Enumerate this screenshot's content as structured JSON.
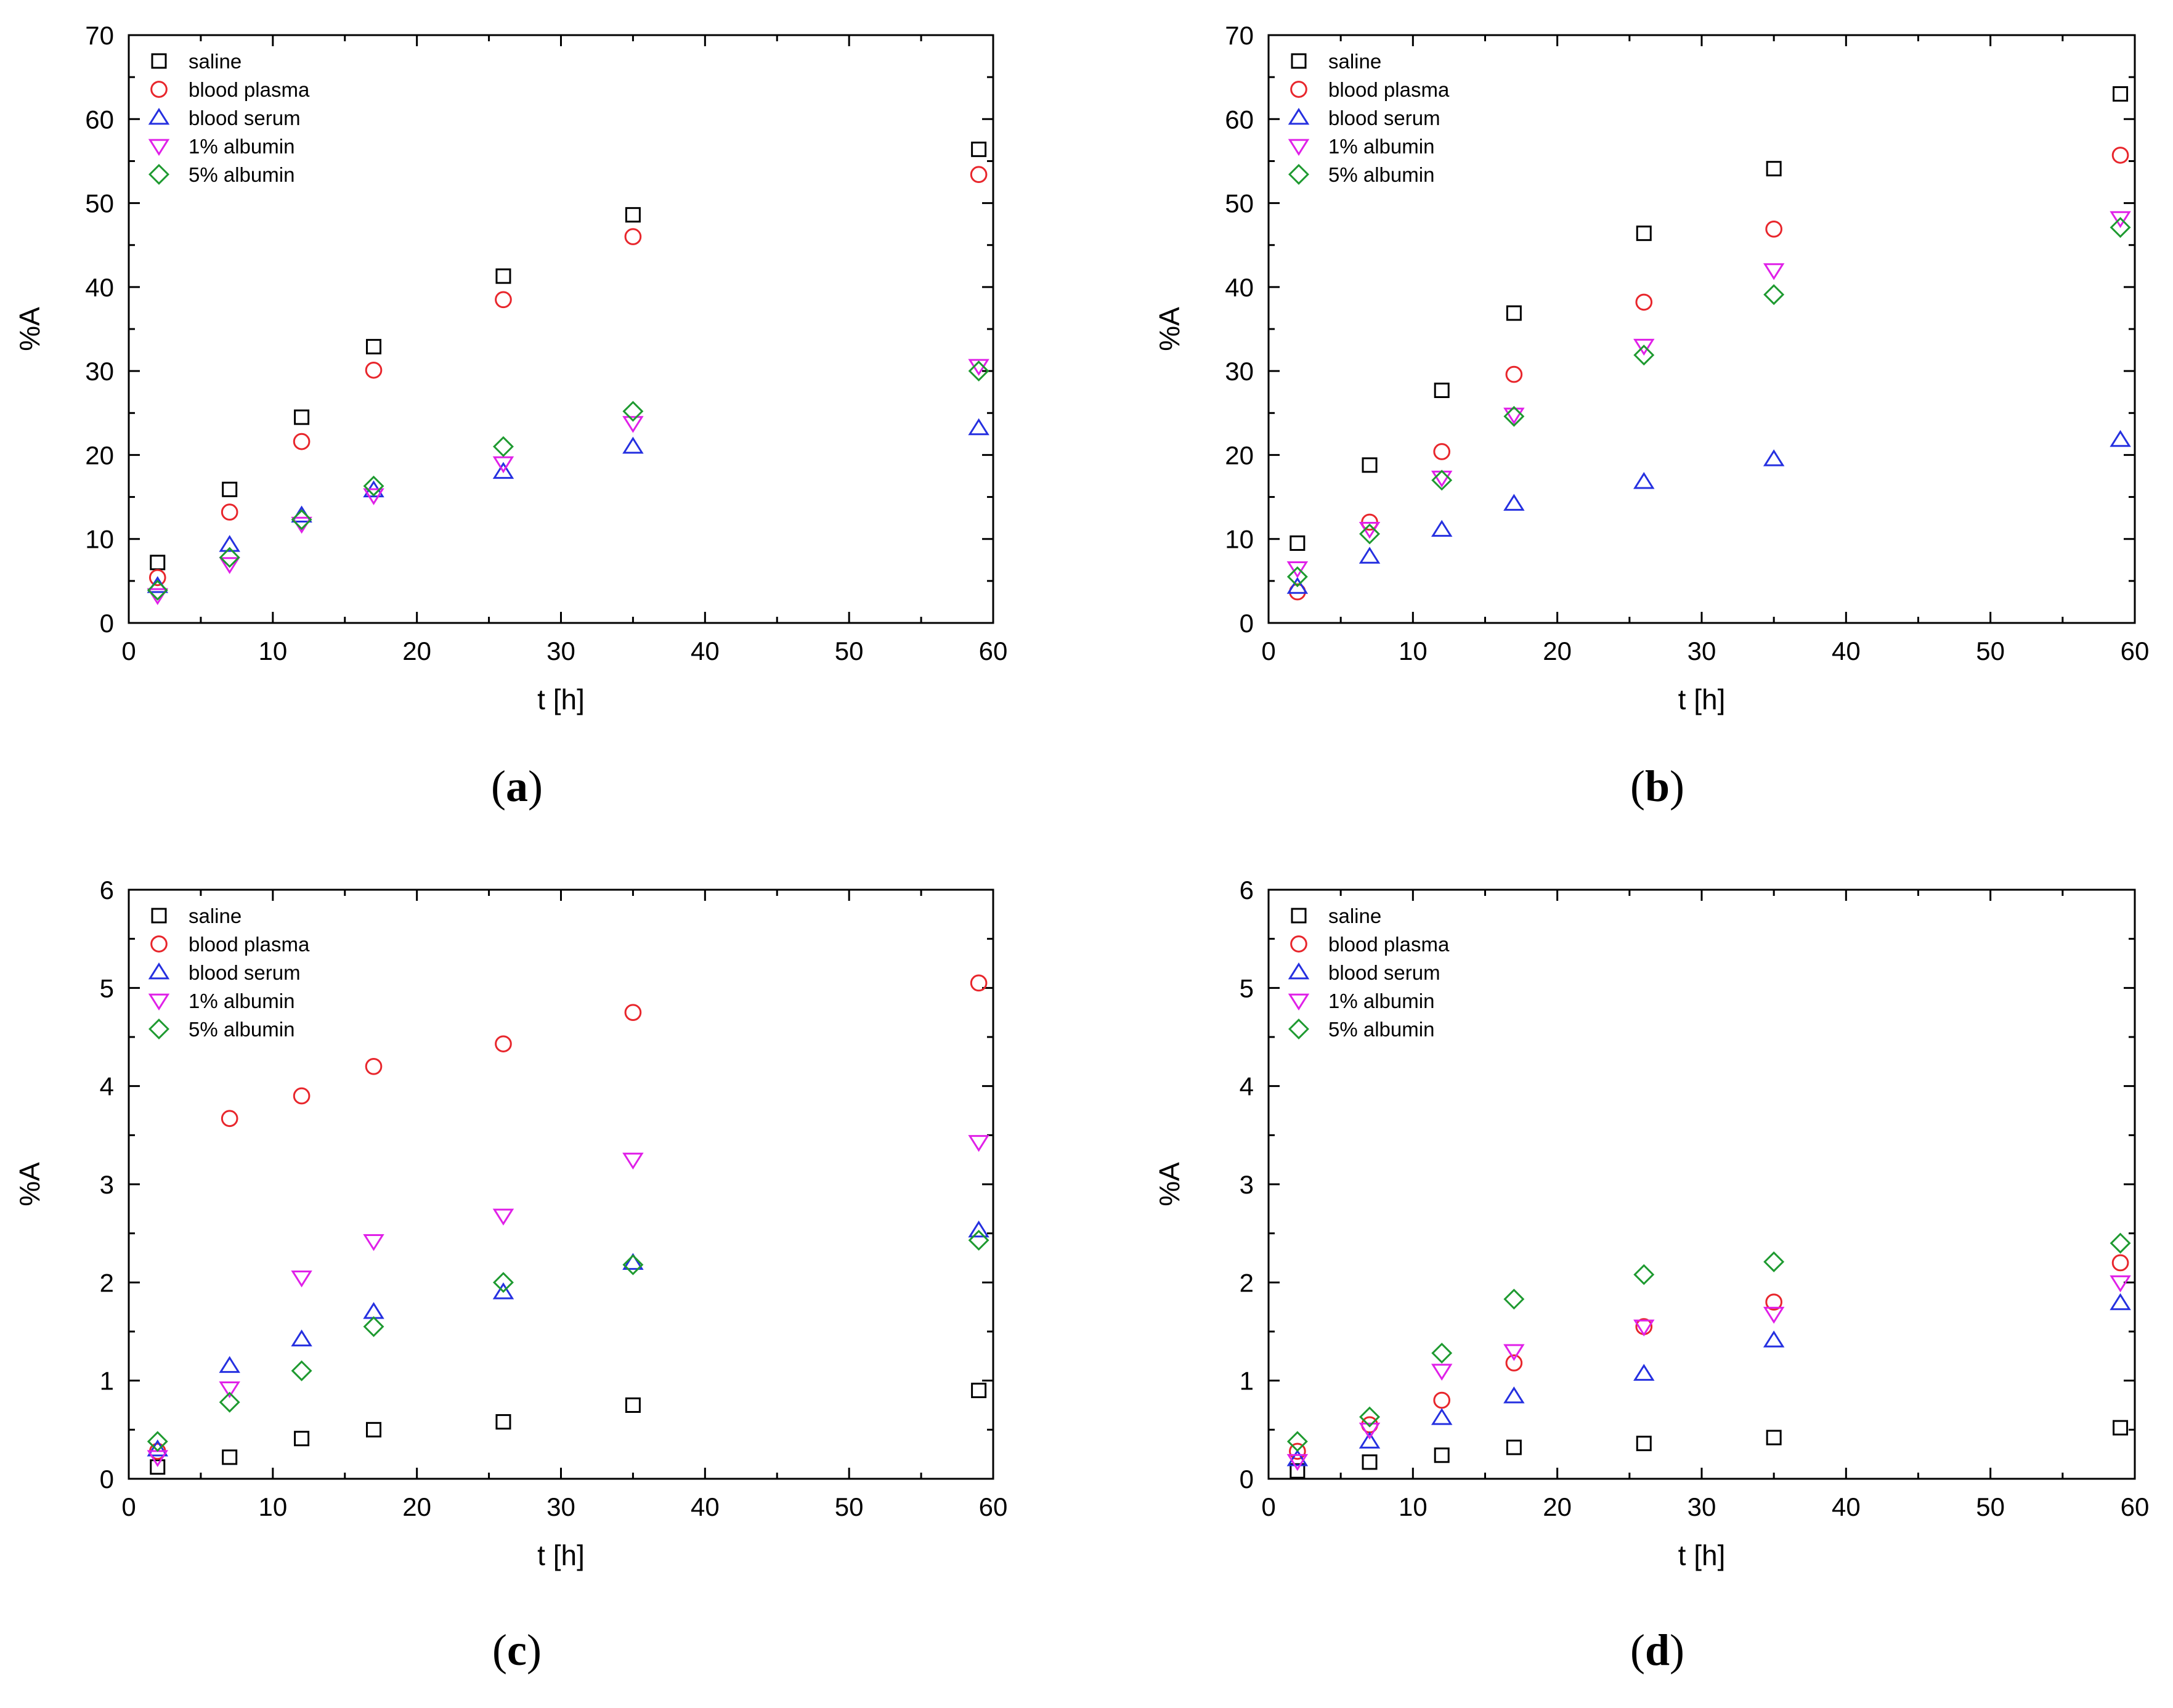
{
  "colors": {
    "saline": "#000000",
    "blood_plasma": "#e8262c",
    "blood_serum": "#2530e0",
    "albumin_1": "#e020e8",
    "albumin_5": "#1e9a30"
  },
  "chart_data": [
    {
      "type": "scatter",
      "panel_label": "a",
      "xlabel": "t [h]",
      "ylabel": "%A",
      "xlim": [
        0,
        60
      ],
      "ylim": [
        0,
        70
      ],
      "xticks": [
        "0",
        "10",
        "20",
        "30",
        "40",
        "50",
        "60"
      ],
      "yticks": [
        "0",
        "10",
        "20",
        "30",
        "40",
        "50",
        "60",
        "70"
      ],
      "legend_position": "top-left",
      "x": [
        2,
        7,
        12,
        17,
        26,
        35,
        59
      ],
      "series": [
        {
          "name": "saline",
          "marker": "square",
          "values": [
            7.2,
            15.9,
            24.5,
            32.9,
            41.3,
            48.6,
            56.4
          ]
        },
        {
          "name": "blood plasma",
          "marker": "circle",
          "values": [
            5.4,
            13.2,
            21.6,
            30.1,
            38.5,
            46.0,
            53.4
          ]
        },
        {
          "name": "blood serum",
          "marker": "triangle-up",
          "values": [
            4.4,
            9.3,
            12.8,
            15.8,
            18.0,
            21.0,
            23.2
          ]
        },
        {
          "name": "1% albumin",
          "marker": "triangle-down",
          "values": [
            3.3,
            7.0,
            11.8,
            15.2,
            19.0,
            23.8,
            30.6
          ]
        },
        {
          "name": "5% albumin",
          "marker": "diamond",
          "values": [
            3.9,
            7.8,
            12.3,
            16.3,
            21.0,
            25.2,
            30.0
          ]
        }
      ]
    },
    {
      "type": "scatter",
      "panel_label": "b",
      "xlabel": "t [h]",
      "ylabel": "%A",
      "xlim": [
        0,
        60
      ],
      "ylim": [
        0,
        70
      ],
      "xticks": [
        "0",
        "10",
        "20",
        "30",
        "40",
        "50",
        "60"
      ],
      "yticks": [
        "0",
        "10",
        "20",
        "30",
        "40",
        "50",
        "60",
        "70"
      ],
      "legend_position": "top-left",
      "x": [
        2,
        7,
        12,
        17,
        26,
        35,
        59
      ],
      "series": [
        {
          "name": "saline",
          "marker": "square",
          "values": [
            9.5,
            18.8,
            27.7,
            36.9,
            46.4,
            54.1,
            63.0
          ]
        },
        {
          "name": "blood plasma",
          "marker": "circle",
          "values": [
            3.7,
            12.0,
            20.4,
            29.6,
            38.2,
            46.9,
            55.7
          ]
        },
        {
          "name": "blood serum",
          "marker": "triangle-up",
          "values": [
            4.3,
            7.9,
            11.1,
            14.2,
            16.8,
            19.5,
            21.8
          ]
        },
        {
          "name": "1% albumin",
          "marker": "triangle-down",
          "values": [
            6.5,
            11.2,
            17.3,
            24.8,
            33.0,
            42.0,
            48.2
          ]
        },
        {
          "name": "5% albumin",
          "marker": "diamond",
          "values": [
            5.5,
            10.6,
            17.0,
            24.6,
            31.9,
            39.1,
            47.1
          ]
        }
      ]
    },
    {
      "type": "scatter",
      "panel_label": "c",
      "xlabel": "t [h]",
      "ylabel": "%A",
      "xlim": [
        0,
        60
      ],
      "ylim": [
        0,
        6
      ],
      "xticks": [
        "0",
        "10",
        "20",
        "30",
        "40",
        "50",
        "60"
      ],
      "yticks": [
        "0",
        "1",
        "2",
        "3",
        "4",
        "5",
        "6"
      ],
      "legend_position": "top-left",
      "x": [
        2,
        7,
        12,
        17,
        26,
        35,
        59
      ],
      "series": [
        {
          "name": "saline",
          "marker": "square",
          "values": [
            0.12,
            0.22,
            0.41,
            0.5,
            0.58,
            0.75,
            0.9
          ]
        },
        {
          "name": "blood plasma",
          "marker": "circle",
          "values": [
            0.28,
            3.67,
            3.9,
            4.2,
            4.43,
            4.75,
            5.05
          ]
        },
        {
          "name": "blood serum",
          "marker": "triangle-up",
          "values": [
            0.3,
            1.15,
            1.42,
            1.7,
            1.9,
            2.2,
            2.53
          ]
        },
        {
          "name": "1% albumin",
          "marker": "triangle-down",
          "values": [
            0.22,
            0.92,
            2.05,
            2.42,
            2.68,
            3.25,
            3.43
          ]
        },
        {
          "name": "5% albumin",
          "marker": "diamond",
          "values": [
            0.38,
            0.78,
            1.1,
            1.55,
            2.0,
            2.18,
            2.43
          ]
        }
      ]
    },
    {
      "type": "scatter",
      "panel_label": "d",
      "xlabel": "t [h]",
      "ylabel": "%A",
      "xlim": [
        0,
        60
      ],
      "ylim": [
        0,
        6
      ],
      "xticks": [
        "0",
        "10",
        "20",
        "30",
        "40",
        "50",
        "60"
      ],
      "yticks": [
        "0",
        "1",
        "2",
        "3",
        "4",
        "5",
        "6"
      ],
      "legend_position": "top-left",
      "x": [
        2,
        7,
        12,
        17,
        26,
        35,
        59
      ],
      "series": [
        {
          "name": "saline",
          "marker": "square",
          "values": [
            0.08,
            0.17,
            0.24,
            0.32,
            0.36,
            0.42,
            0.52
          ]
        },
        {
          "name": "blood plasma",
          "marker": "circle",
          "values": [
            0.28,
            0.55,
            0.8,
            1.18,
            1.55,
            1.8,
            2.2
          ]
        },
        {
          "name": "blood serum",
          "marker": "triangle-up",
          "values": [
            0.2,
            0.38,
            0.62,
            0.84,
            1.07,
            1.41,
            1.79
          ]
        },
        {
          "name": "1% albumin",
          "marker": "triangle-down",
          "values": [
            0.18,
            0.5,
            1.1,
            1.3,
            1.55,
            1.68,
            2.0
          ]
        },
        {
          "name": "5% albumin",
          "marker": "diamond",
          "values": [
            0.38,
            0.63,
            1.28,
            1.83,
            2.08,
            2.21,
            2.4
          ]
        }
      ]
    }
  ]
}
